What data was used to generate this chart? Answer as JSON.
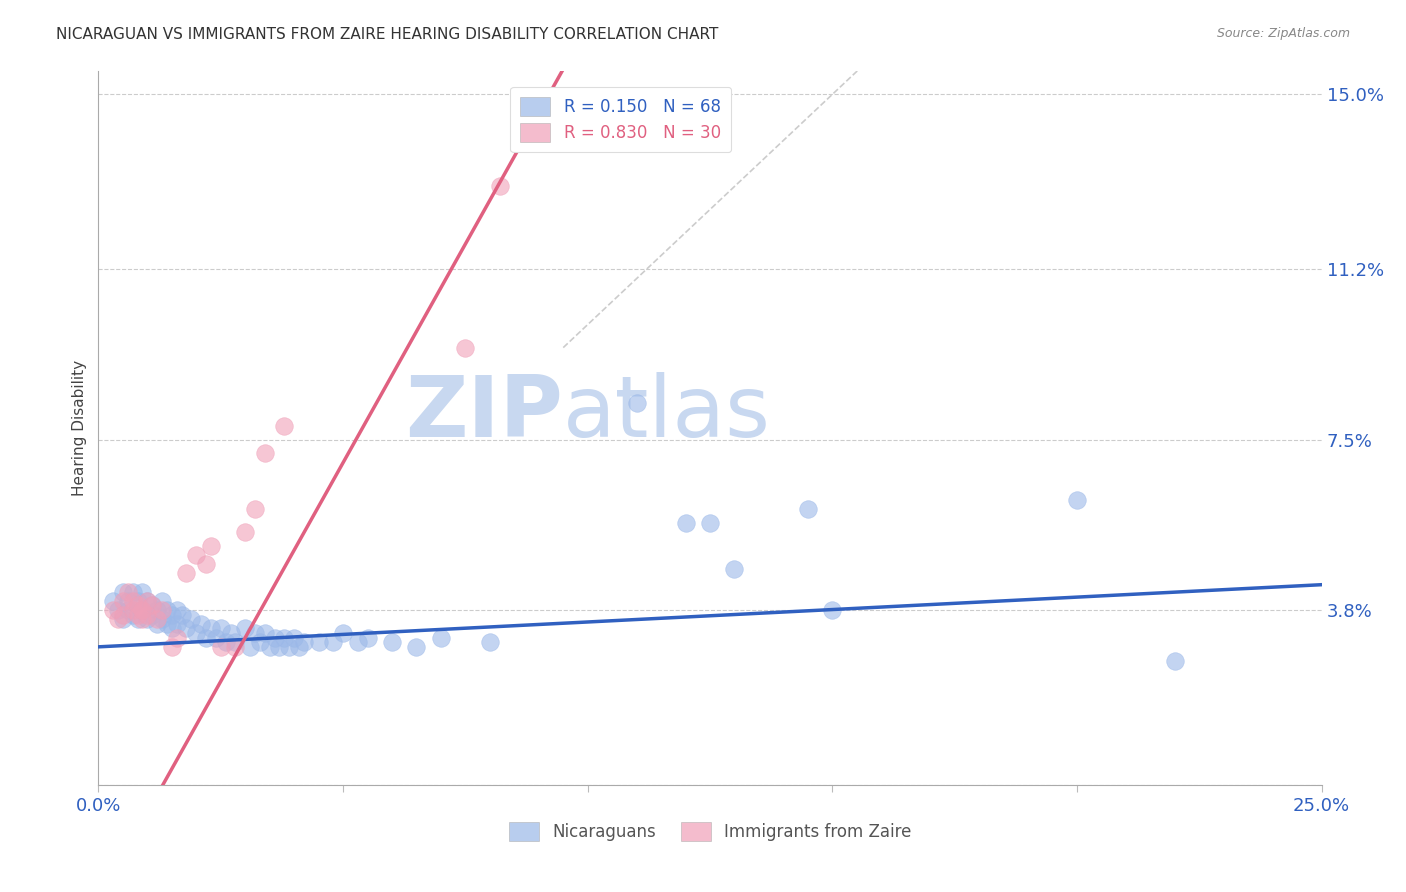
{
  "title": "NICARAGUAN VS IMMIGRANTS FROM ZAIRE HEARING DISABILITY CORRELATION CHART",
  "source": "Source: ZipAtlas.com",
  "ylabel": "Hearing Disability",
  "xlim": [
    0.0,
    0.25
  ],
  "ylim": [
    0.0,
    0.155
  ],
  "xticks": [
    0.0,
    0.05,
    0.1,
    0.15,
    0.2,
    0.25
  ],
  "xtick_labels": [
    "0.0%",
    "",
    "",
    "",
    "",
    "25.0%"
  ],
  "ytick_labels_right": [
    "",
    "3.8%",
    "7.5%",
    "11.2%",
    "15.0%"
  ],
  "ytick_vals_right": [
    0.0,
    0.038,
    0.075,
    0.112,
    0.15
  ],
  "grid_color": "#cccccc",
  "blue_color": "#9BB8E8",
  "pink_color": "#F0A0B8",
  "legend_blue_label_r": "0.150",
  "legend_blue_label_n": "68",
  "legend_pink_label_r": "0.830",
  "legend_pink_label_n": "30",
  "legend_nicaraguan": "Nicaraguans",
  "legend_zaire": "Immigrants from Zaire",
  "blue_line_color": "#3060C0",
  "pink_line_color": "#E06080",
  "diag_line_color": "#CCCCCC",
  "background_color": "#FFFFFF",
  "watermark_zip": "ZIP",
  "watermark_atlas": "atlas",
  "watermark_color_zip": "#C8D8F0",
  "watermark_color_atlas": "#C8D8F0",
  "title_fontsize": 11,
  "blue_scatter": [
    [
      0.003,
      0.04
    ],
    [
      0.004,
      0.038
    ],
    [
      0.005,
      0.042
    ],
    [
      0.005,
      0.036
    ],
    [
      0.006,
      0.04
    ],
    [
      0.006,
      0.038
    ],
    [
      0.007,
      0.042
    ],
    [
      0.007,
      0.037
    ],
    [
      0.008,
      0.04
    ],
    [
      0.008,
      0.036
    ],
    [
      0.009,
      0.042
    ],
    [
      0.009,
      0.038
    ],
    [
      0.01,
      0.04
    ],
    [
      0.01,
      0.036
    ],
    [
      0.011,
      0.039
    ],
    [
      0.011,
      0.037
    ],
    [
      0.012,
      0.038
    ],
    [
      0.012,
      0.035
    ],
    [
      0.013,
      0.04
    ],
    [
      0.013,
      0.036
    ],
    [
      0.014,
      0.038
    ],
    [
      0.014,
      0.035
    ],
    [
      0.015,
      0.037
    ],
    [
      0.015,
      0.034
    ],
    [
      0.016,
      0.038
    ],
    [
      0.016,
      0.035
    ],
    [
      0.017,
      0.037
    ],
    [
      0.018,
      0.034
    ],
    [
      0.019,
      0.036
    ],
    [
      0.02,
      0.033
    ],
    [
      0.021,
      0.035
    ],
    [
      0.022,
      0.032
    ],
    [
      0.023,
      0.034
    ],
    [
      0.024,
      0.032
    ],
    [
      0.025,
      0.034
    ],
    [
      0.026,
      0.031
    ],
    [
      0.027,
      0.033
    ],
    [
      0.028,
      0.031
    ],
    [
      0.03,
      0.034
    ],
    [
      0.031,
      0.03
    ],
    [
      0.032,
      0.033
    ],
    [
      0.033,
      0.031
    ],
    [
      0.034,
      0.033
    ],
    [
      0.035,
      0.03
    ],
    [
      0.036,
      0.032
    ],
    [
      0.037,
      0.03
    ],
    [
      0.038,
      0.032
    ],
    [
      0.039,
      0.03
    ],
    [
      0.04,
      0.032
    ],
    [
      0.041,
      0.03
    ],
    [
      0.042,
      0.031
    ],
    [
      0.045,
      0.031
    ],
    [
      0.048,
      0.031
    ],
    [
      0.05,
      0.033
    ],
    [
      0.053,
      0.031
    ],
    [
      0.055,
      0.032
    ],
    [
      0.06,
      0.031
    ],
    [
      0.065,
      0.03
    ],
    [
      0.07,
      0.032
    ],
    [
      0.08,
      0.031
    ],
    [
      0.11,
      0.083
    ],
    [
      0.12,
      0.057
    ],
    [
      0.125,
      0.057
    ],
    [
      0.13,
      0.047
    ],
    [
      0.145,
      0.06
    ],
    [
      0.15,
      0.038
    ],
    [
      0.2,
      0.062
    ],
    [
      0.22,
      0.027
    ]
  ],
  "pink_scatter": [
    [
      0.003,
      0.038
    ],
    [
      0.004,
      0.036
    ],
    [
      0.005,
      0.04
    ],
    [
      0.005,
      0.037
    ],
    [
      0.006,
      0.042
    ],
    [
      0.007,
      0.038
    ],
    [
      0.007,
      0.04
    ],
    [
      0.008,
      0.037
    ],
    [
      0.008,
      0.039
    ],
    [
      0.009,
      0.036
    ],
    [
      0.009,
      0.038
    ],
    [
      0.01,
      0.04
    ],
    [
      0.01,
      0.037
    ],
    [
      0.011,
      0.039
    ],
    [
      0.012,
      0.036
    ],
    [
      0.013,
      0.038
    ],
    [
      0.015,
      0.03
    ],
    [
      0.016,
      0.032
    ],
    [
      0.018,
      0.046
    ],
    [
      0.02,
      0.05
    ],
    [
      0.022,
      0.048
    ],
    [
      0.023,
      0.052
    ],
    [
      0.025,
      0.03
    ],
    [
      0.028,
      0.03
    ],
    [
      0.03,
      0.055
    ],
    [
      0.032,
      0.06
    ],
    [
      0.034,
      0.072
    ],
    [
      0.038,
      0.078
    ],
    [
      0.075,
      0.095
    ],
    [
      0.082,
      0.13
    ]
  ],
  "pink_line_intercept": -0.025,
  "pink_line_slope": 1.9,
  "blue_line_intercept": 0.03,
  "blue_line_slope": 0.054
}
